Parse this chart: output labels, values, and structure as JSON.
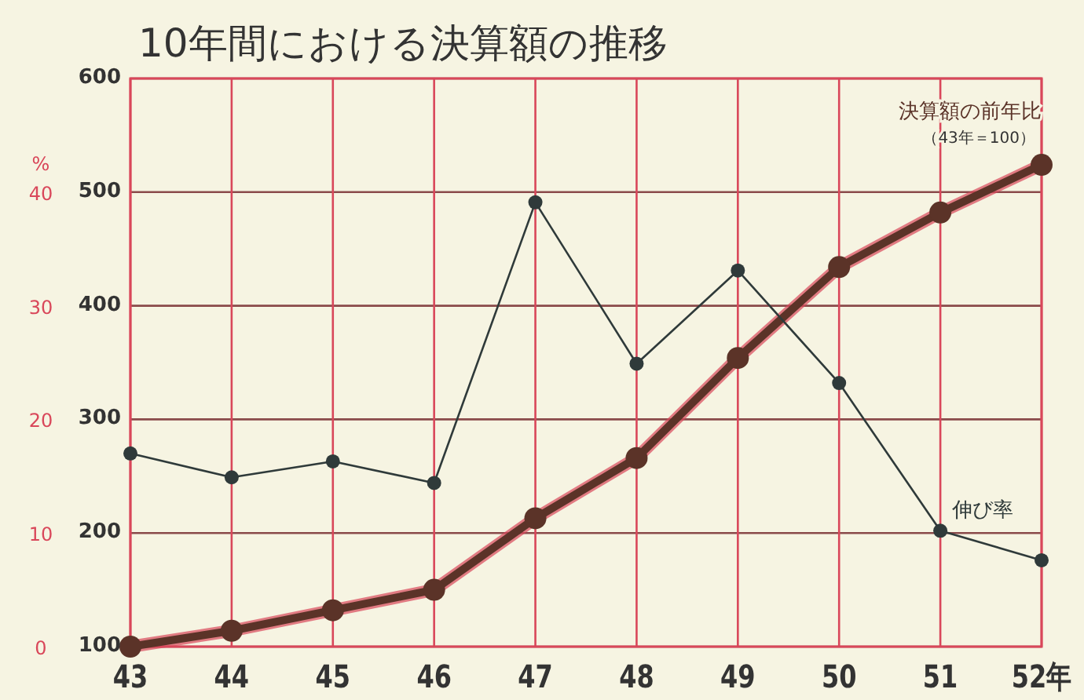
{
  "chart_data": {
    "type": "line",
    "title": "10年間における決算額の推移",
    "categories": [
      "43",
      "44",
      "45",
      "46",
      "47",
      "48",
      "49",
      "50",
      "51",
      "52年"
    ],
    "series": [
      {
        "name": "決算額の前年比",
        "color": "#5b3328",
        "values": [
          100,
          114,
          132,
          150,
          213,
          266,
          354,
          434,
          482,
          524
        ]
      },
      {
        "name": "伸び率",
        "color": "#2f3a3a",
        "axis": "y2",
        "values": [
          17.0,
          14.9,
          16.3,
          14.4,
          39.1,
          24.9,
          33.1,
          23.2,
          10.2,
          7.6
        ]
      }
    ],
    "ylim": [
      100,
      600
    ],
    "yticks": [
      100,
      200,
      300,
      400,
      500,
      600
    ],
    "y2lim": [
      0,
      50
    ],
    "y2ticks": [
      0,
      10,
      20,
      30,
      40
    ],
    "y2label": "%",
    "annotations": [
      "（43年＝100）"
    ],
    "grid": true,
    "marker": "circle"
  }
}
